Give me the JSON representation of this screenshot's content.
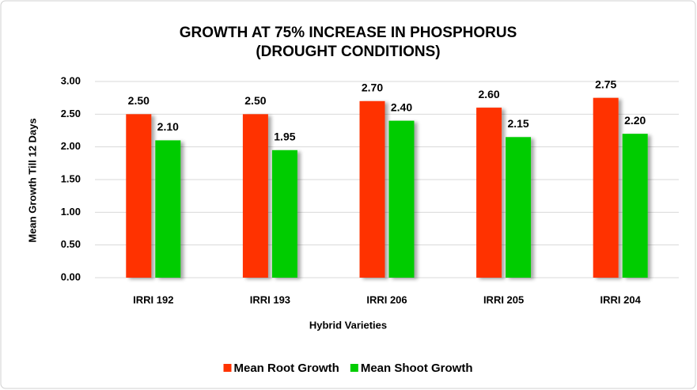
{
  "chart_data": {
    "type": "bar",
    "title": [
      "GROWTH AT 75% INCREASE IN PHOSPHORUS",
      "(DROUGHT CONDITIONS)"
    ],
    "x_label": "Hybrid Varieties",
    "y_label": "Mean Growth Till 12 Days",
    "categories": [
      "IRRI 192",
      "IRRI 193",
      "IRRI 206",
      "IRRI 205",
      "IRRI 204"
    ],
    "series": [
      {
        "name": "Mean Root Growth",
        "color": "#ff3300",
        "values": [
          2.5,
          2.5,
          2.7,
          2.6,
          2.75
        ],
        "value_labels": [
          "2.50",
          "2.50",
          "2.70",
          "2.60",
          "2.75"
        ]
      },
      {
        "name": "Mean Shoot Growth",
        "color": "#00cc00",
        "values": [
          2.1,
          1.95,
          2.4,
          2.15,
          2.2
        ],
        "value_labels": [
          "2.10",
          "1.95",
          "2.40",
          "2.15",
          "2.20"
        ]
      }
    ],
    "ylim": [
      0,
      3
    ],
    "yticks": [
      {
        "value": 0,
        "label": "0.00"
      },
      {
        "value": 0.5,
        "label": "0.50"
      },
      {
        "value": 1,
        "label": "1.00"
      },
      {
        "value": 1.5,
        "label": "1.50"
      },
      {
        "value": 2,
        "label": "2.00"
      },
      {
        "value": 2.5,
        "label": "2.50"
      },
      {
        "value": 3,
        "label": "3.00"
      }
    ],
    "grid": true,
    "legend": "bottom"
  }
}
